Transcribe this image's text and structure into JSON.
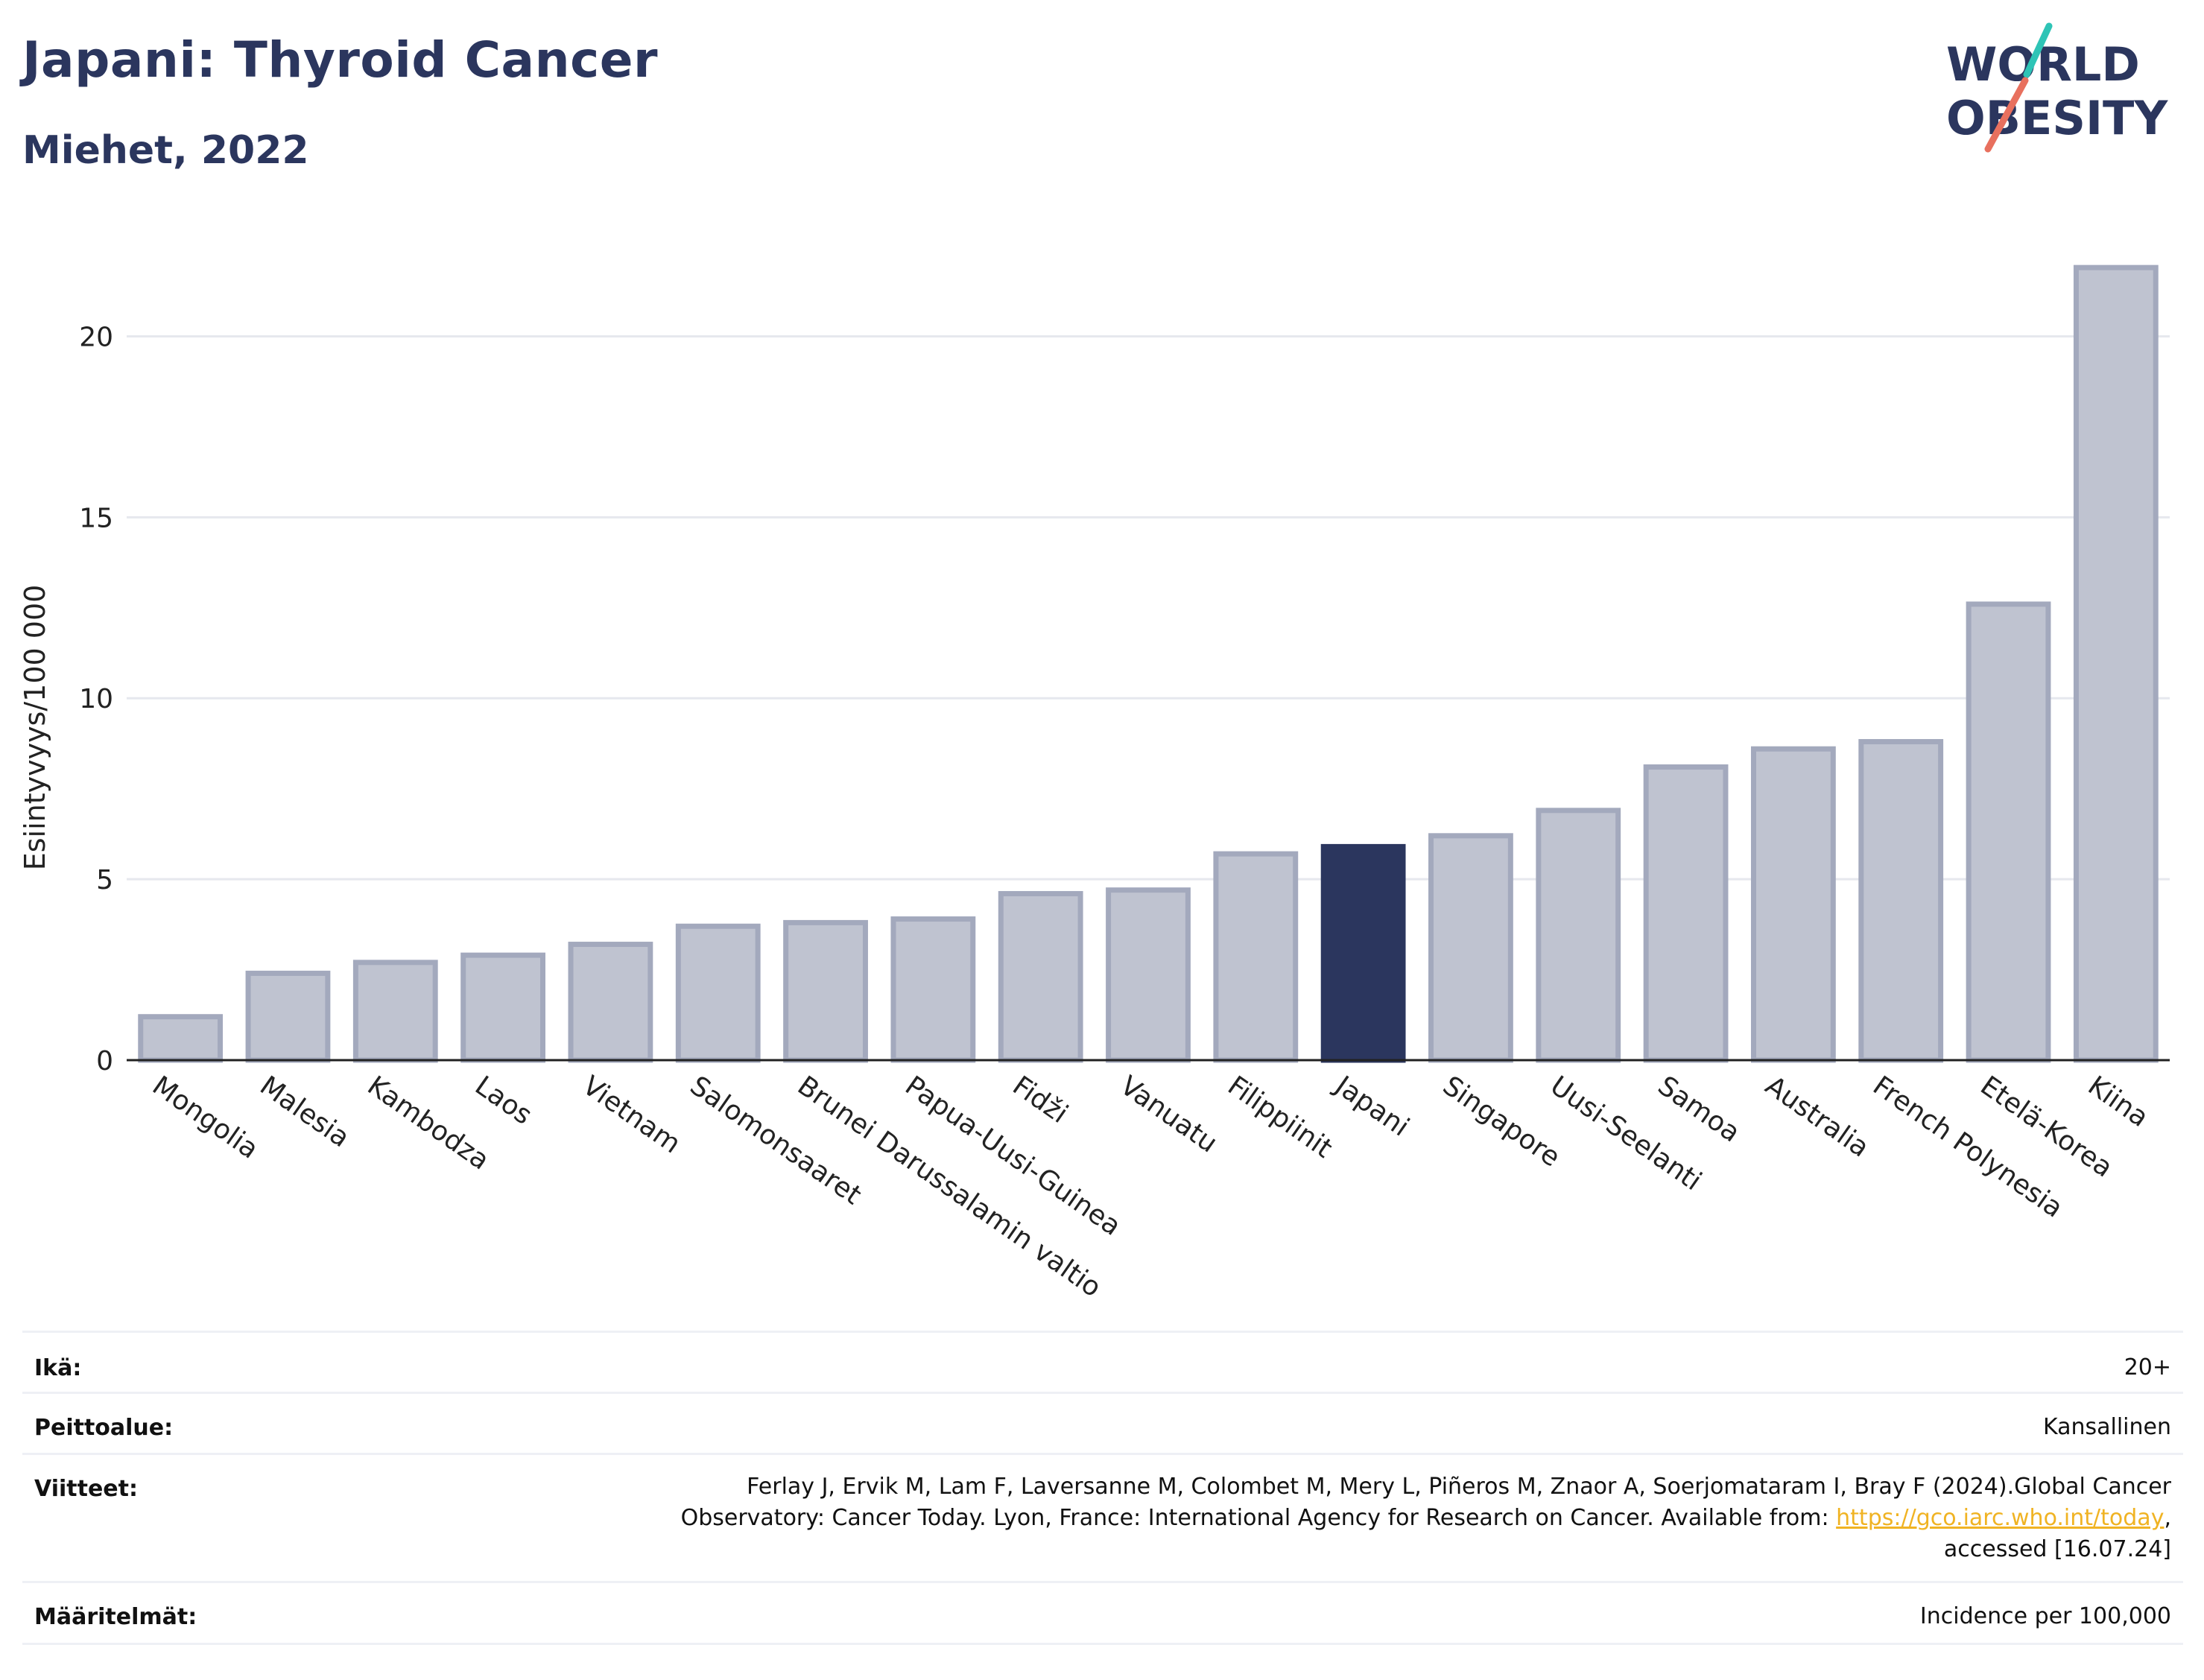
{
  "header": {
    "title": "Japani: Thyroid Cancer",
    "subtitle": "Miehet, 2022"
  },
  "logo": {
    "line1": "WORLD",
    "line2": "OBESITY",
    "accent_colors": [
      "#2ec4b6",
      "#e8705e"
    ]
  },
  "chart_data": {
    "type": "bar",
    "ylabel": "Esiintyvyys/100 000",
    "xlabel": "",
    "ylim": [
      0,
      22.5
    ],
    "yticks": [
      0,
      5,
      10,
      15,
      20
    ],
    "grid": true,
    "highlight": "Japani",
    "colors": {
      "bar": "#bfc3d0",
      "bar_border": "#a3a9bd",
      "highlight": "#2b365e"
    },
    "categories": [
      "Mongolia",
      "Malesia",
      "Kambodza",
      "Laos",
      "Vietnam",
      "Salomonsaaret",
      "Brunei Darussalamin valtio",
      "Papua-Uusi-Guinea",
      "Fidži",
      "Vanuatu",
      "Filippiinit",
      "Japani",
      "Singapore",
      "Uusi-Seelanti",
      "Samoa",
      "Australia",
      "French Polynesia",
      "Etelä-Korea",
      "Kiina"
    ],
    "values": [
      1.2,
      2.4,
      2.7,
      2.9,
      3.2,
      3.7,
      3.8,
      3.9,
      4.6,
      4.7,
      5.7,
      5.9,
      6.2,
      6.9,
      8.1,
      8.6,
      8.8,
      12.6,
      21.9
    ]
  },
  "info": {
    "age_label": "Ikä:",
    "age_value": "20+",
    "coverage_label": "Peittoalue:",
    "coverage_value": "Kansallinen",
    "refs_label": "Viitteet:",
    "refs_line1": "Ferlay J, Ervik M, Lam F, Laversanne M, Colombet M, Mery L, Piñeros M, Znaor A, Soerjomataram I, Bray F (2024).Global Cancer",
    "refs_line2_pre": "Observatory: Cancer Today. Lyon, France: International Agency for Research on Cancer. Available from: ",
    "refs_link": "https://gco.iarc.who.int/today",
    "refs_line2_post": ",",
    "refs_line3": "accessed [16.07.24]",
    "defs_label": "Määritelmät:",
    "defs_value": "Incidence per 100,000"
  }
}
